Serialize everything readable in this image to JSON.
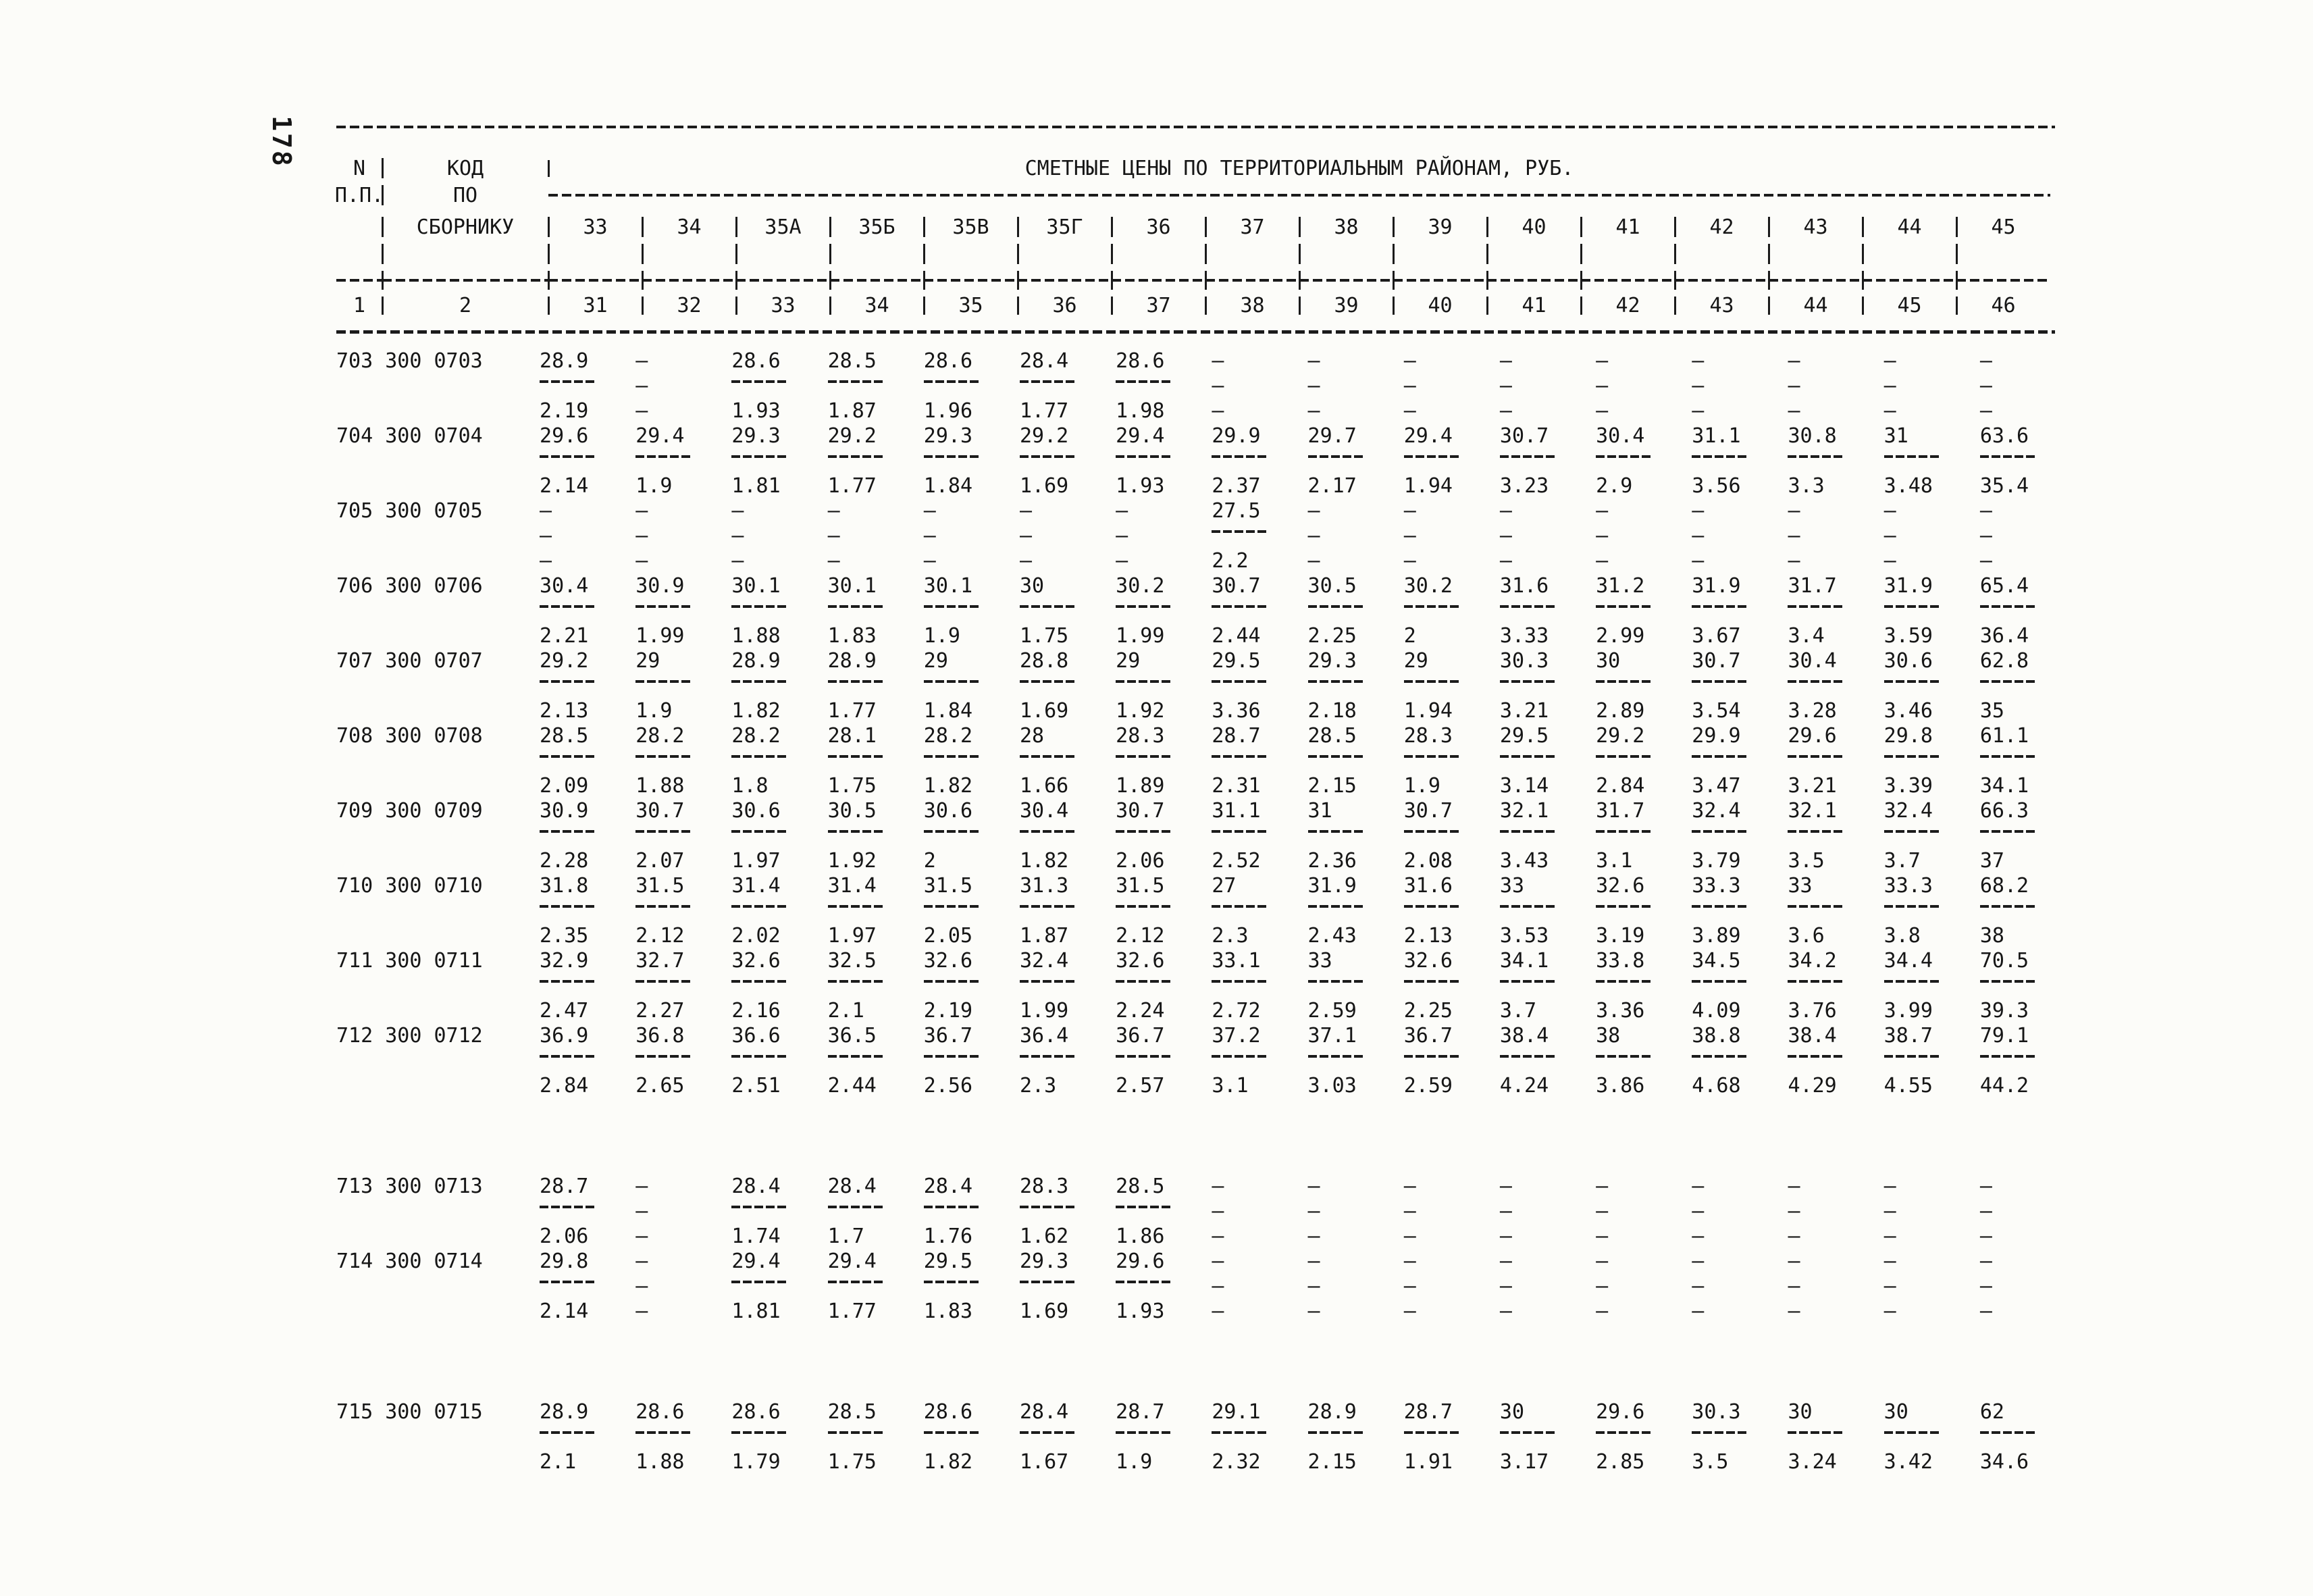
{
  "page_number": "178",
  "symbols": {
    "no_value": "–"
  },
  "header": {
    "col1_title_line1": "N",
    "col1_title_line2": "П.П.",
    "col2_title_line1": "КОД",
    "col2_title_line2": "ПО",
    "col2_title_line3": "СБОРНИКУ",
    "span_title": "СМЕТНЫЕ ЦЕНЫ ПО ТЕРРИТОРИАЛЬНЫМ РАЙОНАМ, РУБ.",
    "district_columns": [
      "33",
      "34",
      "35А",
      "35Б",
      "35В",
      "35Г",
      "36",
      "37",
      "38",
      "39",
      "40",
      "41",
      "42",
      "43",
      "44",
      "45"
    ],
    "ordinal_row": [
      "1",
      "2",
      "31",
      "32",
      "33",
      "34",
      "35",
      "36",
      "37",
      "38",
      "39",
      "40",
      "41",
      "42",
      "43",
      "44",
      "45",
      "46"
    ]
  },
  "table": {
    "rows": [
      {
        "code": "703 300 0703",
        "price": [
          "28.9",
          null,
          "28.6",
          "28.5",
          "28.6",
          "28.4",
          "28.6",
          null,
          null,
          null,
          null,
          null,
          null,
          null,
          null,
          null
        ],
        "coef": [
          "2.19",
          null,
          "1.93",
          "1.87",
          "1.96",
          "1.77",
          "1.98",
          null,
          null,
          null,
          null,
          null,
          null,
          null,
          null,
          null
        ]
      },
      {
        "code": "704 300 0704",
        "price": [
          "29.6",
          "29.4",
          "29.3",
          "29.2",
          "29.3",
          "29.2",
          "29.4",
          "29.9",
          "29.7",
          "29.4",
          "30.7",
          "30.4",
          "31.1",
          "30.8",
          "31",
          "63.6"
        ],
        "coef": [
          "2.14",
          "1.9",
          "1.81",
          "1.77",
          "1.84",
          "1.69",
          "1.93",
          "2.37",
          "2.17",
          "1.94",
          "3.23",
          "2.9",
          "3.56",
          "3.3",
          "3.48",
          "35.4"
        ]
      },
      {
        "code": "705 300 0705",
        "price": [
          null,
          null,
          null,
          null,
          null,
          null,
          null,
          "27.5",
          null,
          null,
          null,
          null,
          null,
          null,
          null,
          null
        ],
        "coef": [
          null,
          null,
          null,
          null,
          null,
          null,
          null,
          "2.2",
          null,
          null,
          null,
          null,
          null,
          null,
          null,
          null
        ]
      },
      {
        "code": "706 300 0706",
        "price": [
          "30.4",
          "30.9",
          "30.1",
          "30.1",
          "30.1",
          "30",
          "30.2",
          "30.7",
          "30.5",
          "30.2",
          "31.6",
          "31.2",
          "31.9",
          "31.7",
          "31.9",
          "65.4"
        ],
        "coef": [
          "2.21",
          "1.99",
          "1.88",
          "1.83",
          "1.9",
          "1.75",
          "1.99",
          "2.44",
          "2.25",
          "2",
          "3.33",
          "2.99",
          "3.67",
          "3.4",
          "3.59",
          "36.4"
        ]
      },
      {
        "code": "707 300 0707",
        "price": [
          "29.2",
          "29",
          "28.9",
          "28.9",
          "29",
          "28.8",
          "29",
          "29.5",
          "29.3",
          "29",
          "30.3",
          "30",
          "30.7",
          "30.4",
          "30.6",
          "62.8"
        ],
        "coef": [
          "2.13",
          "1.9",
          "1.82",
          "1.77",
          "1.84",
          "1.69",
          "1.92",
          "3.36",
          "2.18",
          "1.94",
          "3.21",
          "2.89",
          "3.54",
          "3.28",
          "3.46",
          "35"
        ]
      },
      {
        "code": "708 300 0708",
        "price": [
          "28.5",
          "28.2",
          "28.2",
          "28.1",
          "28.2",
          "28",
          "28.3",
          "28.7",
          "28.5",
          "28.3",
          "29.5",
          "29.2",
          "29.9",
          "29.6",
          "29.8",
          "61.1"
        ],
        "coef": [
          "2.09",
          "1.88",
          "1.8",
          "1.75",
          "1.82",
          "1.66",
          "1.89",
          "2.31",
          "2.15",
          "1.9",
          "3.14",
          "2.84",
          "3.47",
          "3.21",
          "3.39",
          "34.1"
        ]
      },
      {
        "code": "709 300 0709",
        "price": [
          "30.9",
          "30.7",
          "30.6",
          "30.5",
          "30.6",
          "30.4",
          "30.7",
          "31.1",
          "31",
          "30.7",
          "32.1",
          "31.7",
          "32.4",
          "32.1",
          "32.4",
          "66.3"
        ],
        "coef": [
          "2.28",
          "2.07",
          "1.97",
          "1.92",
          "2",
          "1.82",
          "2.06",
          "2.52",
          "2.36",
          "2.08",
          "3.43",
          "3.1",
          "3.79",
          "3.5",
          "3.7",
          "37"
        ]
      },
      {
        "code": "710 300 0710",
        "price": [
          "31.8",
          "31.5",
          "31.4",
          "31.4",
          "31.5",
          "31.3",
          "31.5",
          "27",
          "31.9",
          "31.6",
          "33",
          "32.6",
          "33.3",
          "33",
          "33.3",
          "68.2"
        ],
        "coef": [
          "2.35",
          "2.12",
          "2.02",
          "1.97",
          "2.05",
          "1.87",
          "2.12",
          "2.3",
          "2.43",
          "2.13",
          "3.53",
          "3.19",
          "3.89",
          "3.6",
          "3.8",
          "38"
        ]
      },
      {
        "code": "711 300 0711",
        "price": [
          "32.9",
          "32.7",
          "32.6",
          "32.5",
          "32.6",
          "32.4",
          "32.6",
          "33.1",
          "33",
          "32.6",
          "34.1",
          "33.8",
          "34.5",
          "34.2",
          "34.4",
          "70.5"
        ],
        "coef": [
          "2.47",
          "2.27",
          "2.16",
          "2.1",
          "2.19",
          "1.99",
          "2.24",
          "2.72",
          "2.59",
          "2.25",
          "3.7",
          "3.36",
          "4.09",
          "3.76",
          "3.99",
          "39.3"
        ]
      },
      {
        "code": "712 300 0712",
        "price": [
          "36.9",
          "36.8",
          "36.6",
          "36.5",
          "36.7",
          "36.4",
          "36.7",
          "37.2",
          "37.1",
          "36.7",
          "38.4",
          "38",
          "38.8",
          "38.4",
          "38.7",
          "79.1"
        ],
        "coef": [
          "2.84",
          "2.65",
          "2.51",
          "2.44",
          "2.56",
          "2.3",
          "2.57",
          "3.1",
          "3.03",
          "2.59",
          "4.24",
          "3.86",
          "4.68",
          "4.29",
          "4.55",
          "44.2"
        ]
      },
      {
        "code": "713 300 0713",
        "section_break": true,
        "price": [
          "28.7",
          null,
          "28.4",
          "28.4",
          "28.4",
          "28.3",
          "28.5",
          null,
          null,
          null,
          null,
          null,
          null,
          null,
          null,
          null
        ],
        "coef": [
          "2.06",
          null,
          "1.74",
          "1.7",
          "1.76",
          "1.62",
          "1.86",
          null,
          null,
          null,
          null,
          null,
          null,
          null,
          null,
          null
        ]
      },
      {
        "code": "714 300 0714",
        "price": [
          "29.8",
          null,
          "29.4",
          "29.4",
          "29.5",
          "29.3",
          "29.6",
          null,
          null,
          null,
          null,
          null,
          null,
          null,
          null,
          null
        ],
        "coef": [
          "2.14",
          null,
          "1.81",
          "1.77",
          "1.83",
          "1.69",
          "1.93",
          null,
          null,
          null,
          null,
          null,
          null,
          null,
          null,
          null
        ]
      },
      {
        "code": "715 300 0715",
        "section_break": true,
        "price": [
          "28.9",
          "28.6",
          "28.6",
          "28.5",
          "28.6",
          "28.4",
          "28.7",
          "29.1",
          "28.9",
          "28.7",
          "30",
          "29.6",
          "30.3",
          "30",
          "30",
          "62"
        ],
        "coef": [
          "2.1",
          "1.88",
          "1.79",
          "1.75",
          "1.82",
          "1.67",
          "1.9",
          "2.32",
          "2.15",
          "1.91",
          "3.17",
          "2.85",
          "3.5",
          "3.24",
          "3.42",
          "34.6"
        ]
      }
    ]
  }
}
